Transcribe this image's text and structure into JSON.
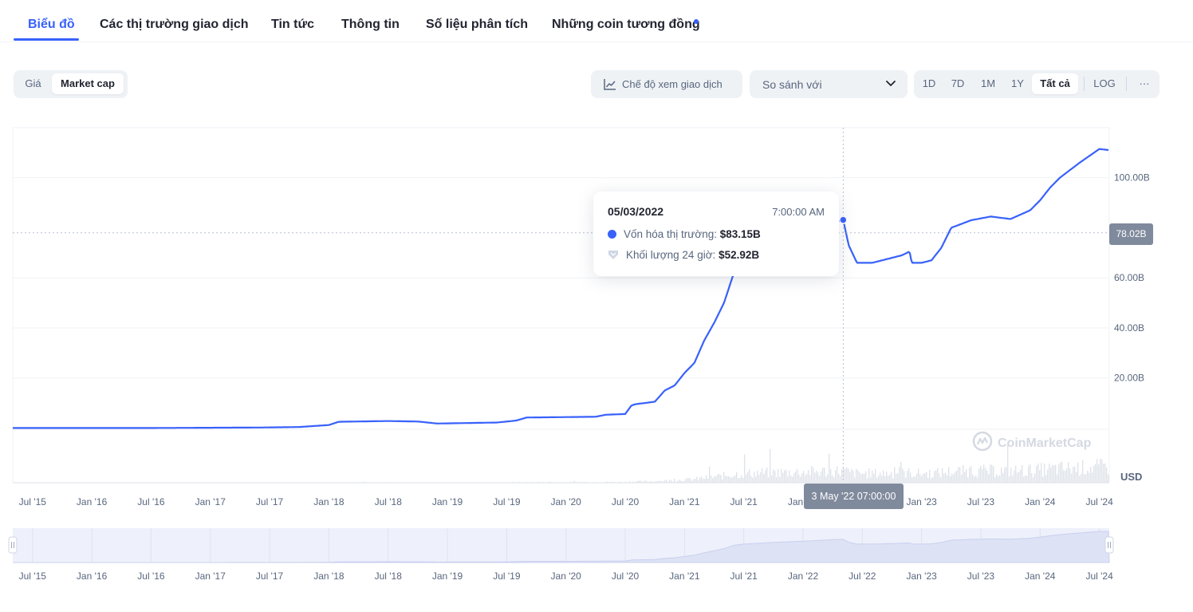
{
  "tabs": [
    {
      "label": "Biểu đồ",
      "active": true
    },
    {
      "label": "Các thị trường giao dịch"
    },
    {
      "label": "Tin tức"
    },
    {
      "label": "Thông tin"
    },
    {
      "label": "Số liệu phân tích"
    },
    {
      "label": "Những coin tương đồng",
      "badge": true
    }
  ],
  "toolbar": {
    "metric_toggle": [
      {
        "label": "Giá"
      },
      {
        "label": "Market cap",
        "selected": true
      }
    ],
    "trading_view_label": "Chế độ xem giao dịch",
    "compare_label": "So sánh với",
    "ranges": [
      {
        "label": "1D"
      },
      {
        "label": "7D"
      },
      {
        "label": "1M"
      },
      {
        "label": "1Y"
      },
      {
        "label": "Tất cả",
        "selected": true
      }
    ],
    "log_label": "LOG",
    "more_label": "···"
  },
  "tooltip": {
    "date": "05/03/2022",
    "time": "7:00:00 AM",
    "market_cap_label": "Vốn hóa thị trường:",
    "market_cap_value": "$83.15B",
    "volume_label": "Khối lượng 24 giờ:",
    "volume_value": "$52.92B"
  },
  "price_tag": "78.02B",
  "date_tag": "3 May '22 07:00:00",
  "currency_label": "USD",
  "watermark": "CoinMarketCap",
  "colors": {
    "accent": "#3861fb",
    "line": "#3861fb",
    "grid": "#eff2f5",
    "tag_bg": "#808a9d",
    "volume": "#dfe3ea",
    "navigator_fill": "#eef0fb"
  },
  "chart_data": {
    "type": "line",
    "title": "",
    "xlabel": "",
    "ylabel": "",
    "yunit": "B USD",
    "y_ticks": [
      "20.00B",
      "40.00B",
      "60.00B",
      "100.00B"
    ],
    "x_ticks": [
      "Jul '15",
      "Jan '16",
      "Jul '16",
      "Jan '17",
      "Jul '17",
      "Jan '18",
      "Jul '18",
      "Jan '19",
      "Jul '19",
      "Jan '20",
      "Jul '20",
      "Jan '21",
      "Jul '21",
      "Jan '22",
      "Jul '22",
      "Jan '23",
      "Jul '23",
      "Jan '24",
      "Jul '24"
    ],
    "x_range": [
      "2015-05",
      "2024-08"
    ],
    "ylim": [
      -0.5,
      120
    ],
    "grid": true,
    "current_value": 78.02,
    "hover": {
      "date": "2022-05-03",
      "market_cap": 83.15,
      "volume_24h": 52.92
    },
    "series": [
      {
        "name": "Vốn hóa thị trường",
        "points": [
          [
            "2015-05",
            0.0
          ],
          [
            "2016-06",
            0.0
          ],
          [
            "2017-06",
            0.2
          ],
          [
            "2017-10",
            0.4
          ],
          [
            "2018-01",
            1.2
          ],
          [
            "2018-02",
            2.5
          ],
          [
            "2018-07",
            2.8
          ],
          [
            "2018-10",
            2.6
          ],
          [
            "2018-12",
            1.8
          ],
          [
            "2019-06",
            2.2
          ],
          [
            "2019-08",
            3.0
          ],
          [
            "2019-09",
            4.2
          ],
          [
            "2020-04",
            4.5
          ],
          [
            "2020-05",
            5.3
          ],
          [
            "2020-07",
            5.6
          ],
          [
            "2020-07-20",
            9.0
          ],
          [
            "2020-08",
            9.5
          ],
          [
            "2020-10",
            10.5
          ],
          [
            "2020-11",
            15.0
          ],
          [
            "2020-12",
            17.0
          ],
          [
            "2021-01",
            22.0
          ],
          [
            "2021-02",
            26.0
          ],
          [
            "2021-03",
            35.0
          ],
          [
            "2021-04",
            42.0
          ],
          [
            "2021-05",
            50.0
          ],
          [
            "2021-06",
            62.0
          ],
          [
            "2021-07",
            66.0
          ],
          [
            "2021-08",
            68.0
          ],
          [
            "2021-10",
            72.0
          ],
          [
            "2021-12",
            75.0
          ],
          [
            "2022-02",
            78.0
          ],
          [
            "2022-04",
            82.0
          ],
          [
            "2022-05-03",
            83.15
          ],
          [
            "2022-05-20",
            73.0
          ],
          [
            "2022-06-15",
            66.0
          ],
          [
            "2022-08",
            66.0
          ],
          [
            "2022-10",
            68.0
          ],
          [
            "2022-11",
            69.0
          ],
          [
            "2022-11-25",
            70.5
          ],
          [
            "2022-12",
            66.0
          ],
          [
            "2023-01",
            66.0
          ],
          [
            "2023-02",
            67.0
          ],
          [
            "2023-03",
            72.0
          ],
          [
            "2023-04",
            80.0
          ],
          [
            "2023-06",
            83.0
          ],
          [
            "2023-08",
            84.5
          ],
          [
            "2023-10",
            83.5
          ],
          [
            "2023-12",
            87.0
          ],
          [
            "2024-01",
            91.0
          ],
          [
            "2024-02",
            96.0
          ],
          [
            "2024-03",
            100.0
          ],
          [
            "2024-05",
            106.0
          ],
          [
            "2024-07",
            111.5
          ],
          [
            "2024-08",
            111.0
          ]
        ]
      }
    ]
  }
}
